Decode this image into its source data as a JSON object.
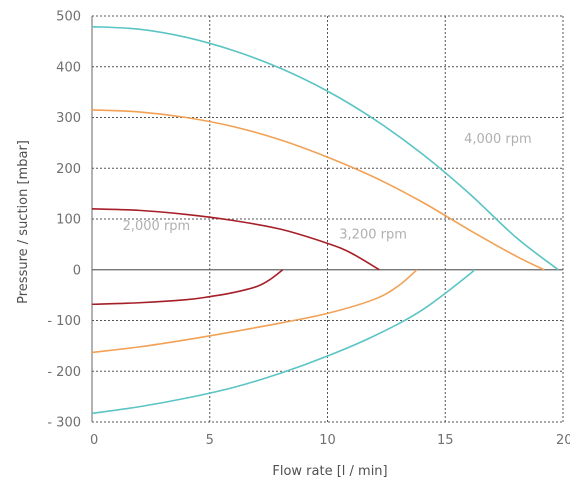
{
  "chart_data": {
    "type": "line",
    "title": "",
    "xlabel": "Flow rate [l / min]",
    "ylabel": "Pressure / suction [mbar]",
    "xlim": [
      0,
      20
    ],
    "ylim": [
      -300,
      500
    ],
    "grid": true,
    "x_ticks": [
      {
        "value": 0,
        "label": "0"
      },
      {
        "value": 5,
        "label": "5"
      },
      {
        "value": 10,
        "label": "10"
      },
      {
        "value": 15,
        "label": "15"
      },
      {
        "value": 20,
        "label": "20"
      }
    ],
    "y_ticks": [
      {
        "value": 500,
        "label": "500"
      },
      {
        "value": 400,
        "label": "400"
      },
      {
        "value": 300,
        "label": "300"
      },
      {
        "value": 200,
        "label": "200"
      },
      {
        "value": 100,
        "label": "100"
      },
      {
        "value": 0,
        "label": "0"
      },
      {
        "value": -100,
        "label": "- 100"
      },
      {
        "value": -200,
        "label": "- 200"
      },
      {
        "value": -300,
        "label": "- 300"
      }
    ],
    "series": [
      {
        "color": "#5bc4c4",
        "points": [
          [
            0,
            479
          ],
          [
            2,
            474
          ],
          [
            4,
            458
          ],
          [
            6,
            432
          ],
          [
            8,
            397
          ],
          [
            10,
            352
          ],
          [
            12,
            296
          ],
          [
            14,
            229
          ],
          [
            16,
            151
          ],
          [
            18,
            64
          ],
          [
            19.8,
            0
          ]
        ]
      },
      {
        "color": "#5bc4c4",
        "points": [
          [
            0,
            -283
          ],
          [
            2,
            -270
          ],
          [
            4,
            -253
          ],
          [
            6,
            -232
          ],
          [
            8,
            -204
          ],
          [
            10,
            -170
          ],
          [
            12,
            -130
          ],
          [
            14,
            -80
          ],
          [
            16,
            -10
          ],
          [
            16.2,
            0
          ]
        ]
      },
      {
        "color": "#f2a155",
        "points": [
          [
            0,
            315
          ],
          [
            2,
            311
          ],
          [
            4,
            300
          ],
          [
            6,
            282
          ],
          [
            8,
            256
          ],
          [
            10,
            222
          ],
          [
            12,
            182
          ],
          [
            14,
            134
          ],
          [
            16,
            79
          ],
          [
            18,
            27
          ],
          [
            19.2,
            0
          ]
        ]
      },
      {
        "color": "#f2a155",
        "points": [
          [
            0,
            -163
          ],
          [
            2,
            -152
          ],
          [
            4,
            -138
          ],
          [
            6,
            -122
          ],
          [
            8,
            -105
          ],
          [
            10,
            -86
          ],
          [
            12,
            -58
          ],
          [
            13,
            -32
          ],
          [
            13.8,
            0
          ]
        ]
      },
      {
        "color": "#a61e28",
        "points": [
          [
            0,
            120
          ],
          [
            2,
            117
          ],
          [
            4,
            109
          ],
          [
            6,
            97
          ],
          [
            8,
            80
          ],
          [
            10,
            52
          ],
          [
            11,
            33
          ],
          [
            12.2,
            0
          ]
        ]
      },
      {
        "color": "#a61e28",
        "points": [
          [
            0,
            -68
          ],
          [
            2,
            -65
          ],
          [
            4,
            -59
          ],
          [
            5,
            -53
          ],
          [
            6,
            -45
          ],
          [
            7,
            -33
          ],
          [
            7.6,
            -18
          ],
          [
            8.1,
            0
          ]
        ]
      }
    ],
    "annotations": [
      {
        "text": "4,000 rpm",
        "x": 15.8,
        "y": 250,
        "color": "#b0b0b0"
      },
      {
        "text": "3,200 rpm",
        "x": 10.5,
        "y": 62,
        "color": "#b0b0b0"
      },
      {
        "text": "2,000 rpm",
        "x": 1.3,
        "y": 78,
        "color": "#b0b0b0"
      }
    ]
  }
}
